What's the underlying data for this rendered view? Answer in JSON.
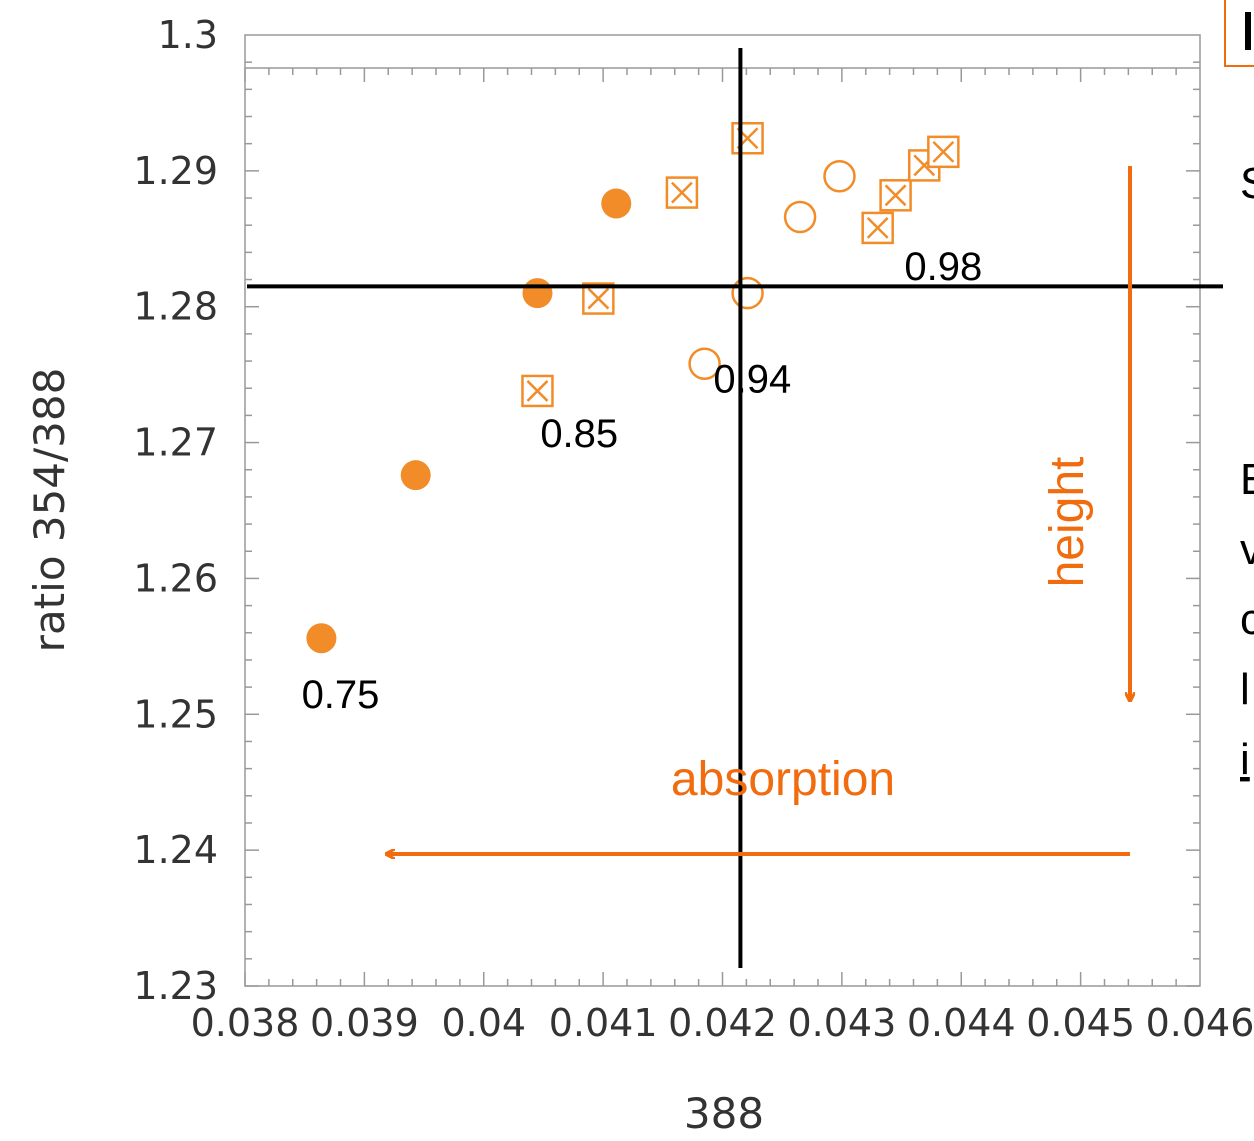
{
  "colors": {
    "series": "#F28C28",
    "arrow": "#F06C0F",
    "axis": "#999999",
    "crosshair": "#000000"
  },
  "chart_data": {
    "type": "scatter",
    "xlabel": "388",
    "ylabel": "ratio 354/388",
    "xlim": [
      0.038,
      0.046
    ],
    "ylim": [
      1.23,
      1.3
    ],
    "x_ticks": [
      "0.038",
      "0.039",
      "0.04",
      "0.041",
      "0.042",
      "0.043",
      "0.044",
      "0.045",
      "0.046"
    ],
    "y_ticks": [
      "1.23",
      "1.24",
      "1.25",
      "1.26",
      "1.27",
      "1.28",
      "1.29",
      "1.3"
    ],
    "grid": false,
    "series": [
      {
        "marker": "filled-circle",
        "points": [
          {
            "x": 0.03864,
            "y": 1.2556
          },
          {
            "x": 0.03943,
            "y": 1.2676
          },
          {
            "x": 0.04045,
            "y": 1.281
          },
          {
            "x": 0.04111,
            "y": 1.2876
          }
        ]
      },
      {
        "marker": "crossed-square",
        "points": [
          {
            "x": 0.04045,
            "y": 1.2738
          },
          {
            "x": 0.04096,
            "y": 1.2806
          },
          {
            "x": 0.04166,
            "y": 1.2884
          },
          {
            "x": 0.04221,
            "y": 1.2924
          },
          {
            "x": 0.0433,
            "y": 1.2858
          },
          {
            "x": 0.04345,
            "y": 1.2882
          },
          {
            "x": 0.04369,
            "y": 1.2904
          },
          {
            "x": 0.04385,
            "y": 1.2914
          }
        ]
      },
      {
        "marker": "open-circle",
        "points": [
          {
            "x": 0.04185,
            "y": 1.2758
          },
          {
            "x": 0.04221,
            "y": 1.281
          },
          {
            "x": 0.04265,
            "y": 1.2866
          },
          {
            "x": 0.04298,
            "y": 1.2896
          }
        ]
      }
    ],
    "reference_lines": {
      "x": 0.04215,
      "y": 1.2815
    },
    "point_labels": [
      {
        "text": "0.75",
        "x": 0.0388,
        "y": 1.2515
      },
      {
        "text": "0.85",
        "x": 0.0408,
        "y": 1.2707
      },
      {
        "text": "0.94",
        "x": 0.04225,
        "y": 1.2747
      },
      {
        "text": "0.98",
        "x": 0.04385,
        "y": 1.283
      }
    ],
    "annotations": {
      "height": "height",
      "absorption": "absorption"
    }
  },
  "side_panel": {
    "lines": [
      "S",
      "E",
      "v",
      "c",
      "l",
      "i"
    ]
  }
}
